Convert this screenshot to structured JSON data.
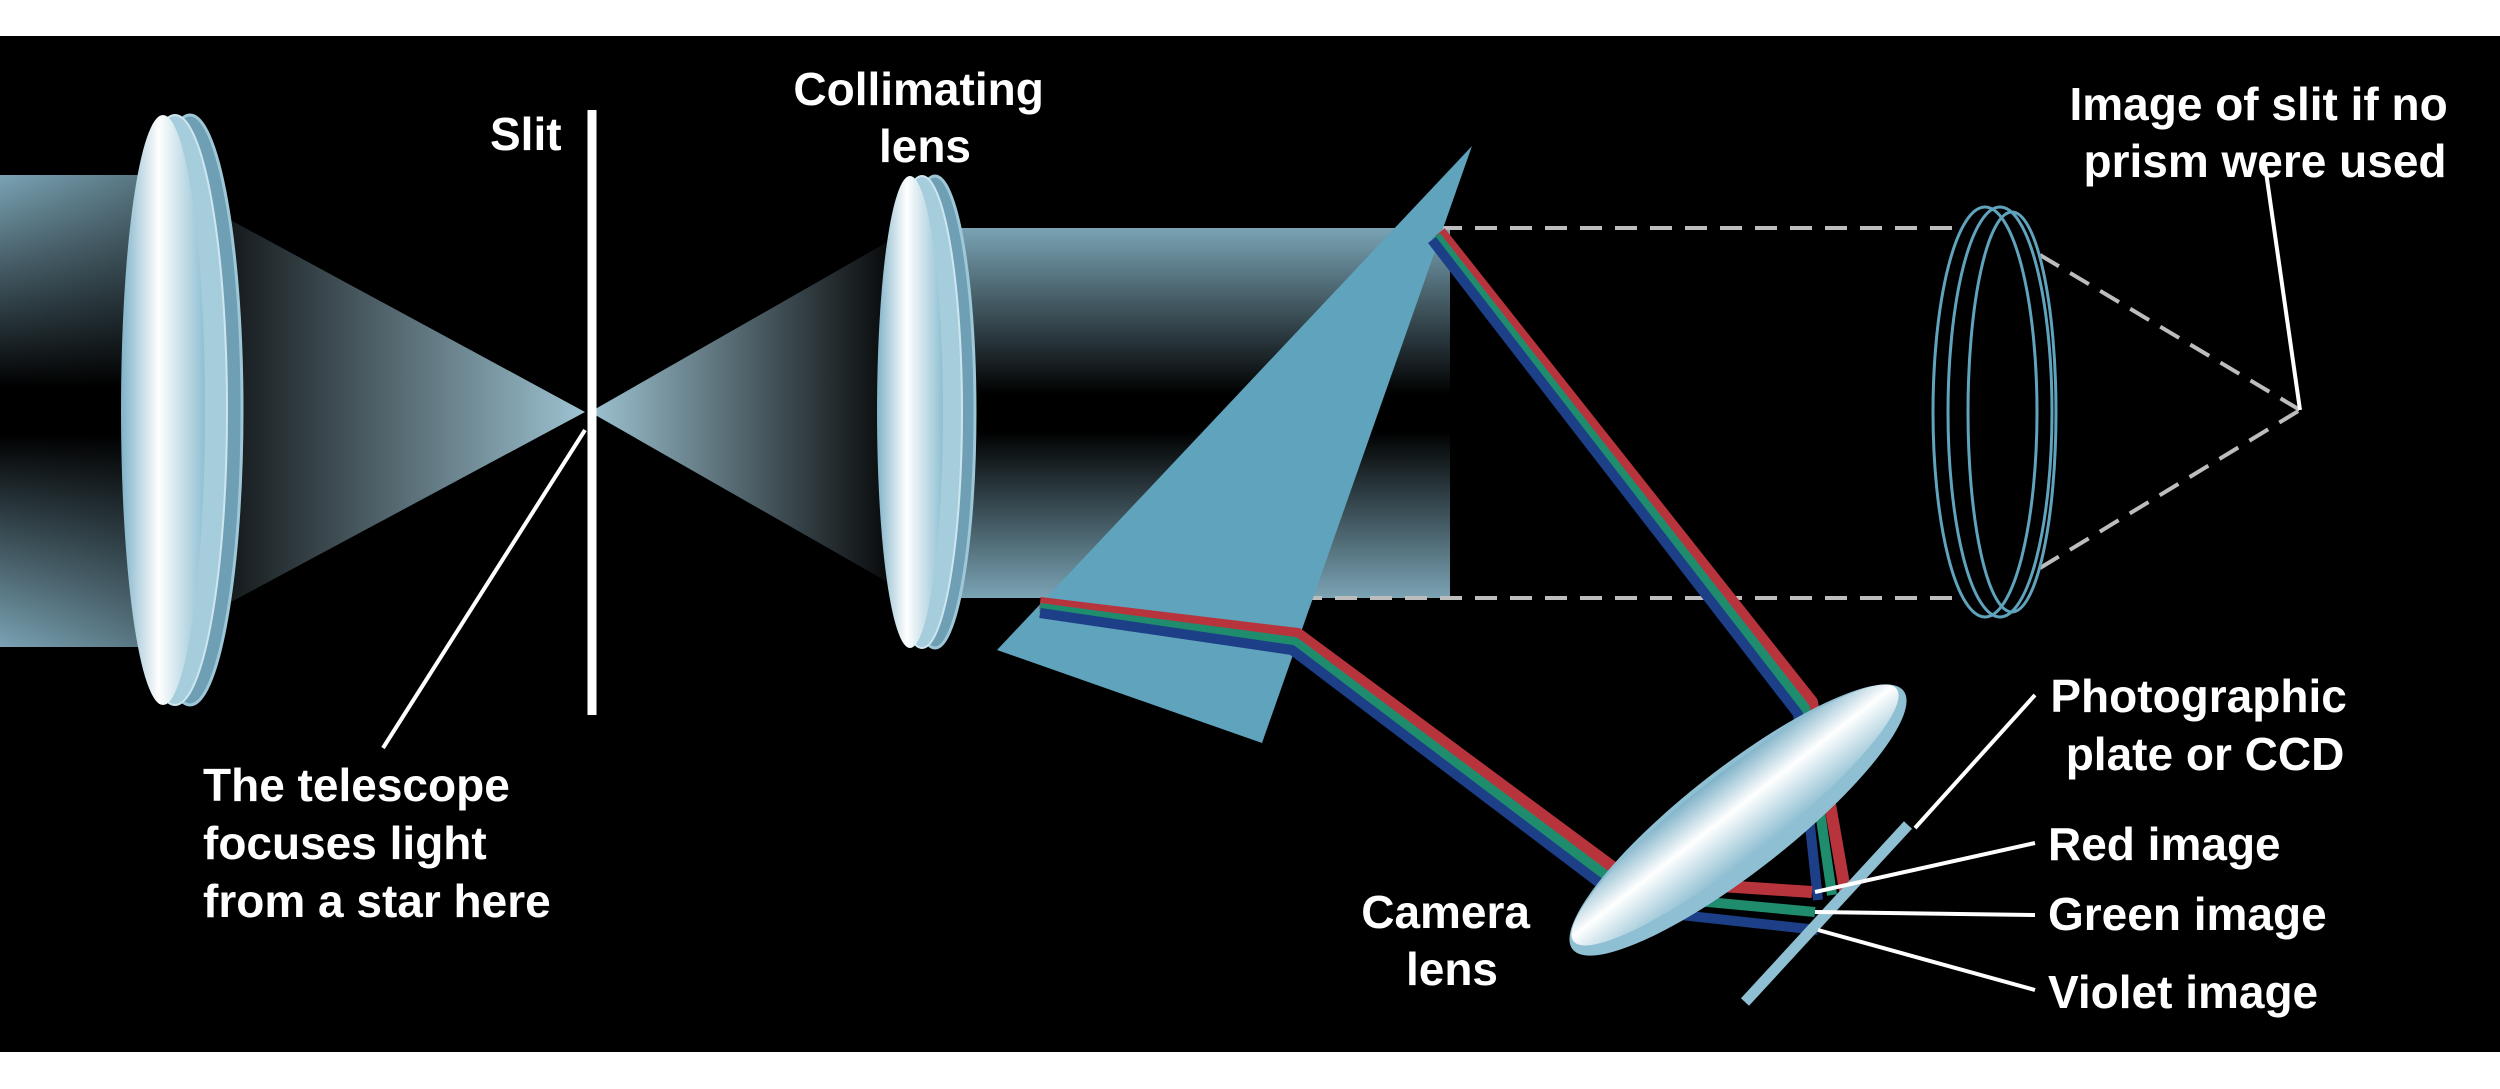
{
  "diagram": {
    "labels": {
      "slit": "Slit",
      "collimating_lens": [
        "Collimating",
        "lens"
      ],
      "image_no_prism": [
        "Image of slit if no",
        "prism were used"
      ],
      "telescope_focus": [
        "The telescope",
        "focuses light",
        "from a star here"
      ],
      "camera_lens": [
        "Camera",
        "lens"
      ],
      "photographic_plate": [
        "Photographic",
        "plate or CCD"
      ],
      "red_image": "Red image",
      "green_image": "Green image",
      "violet_image": "Violet image"
    },
    "colors": {
      "background": "#000000",
      "lens": "#c9e3ee",
      "prism": "#5fa3bd",
      "red_ray": "#b8343c",
      "green_ray": "#1f8c6e",
      "violet_ray": "#1c3f88"
    }
  }
}
